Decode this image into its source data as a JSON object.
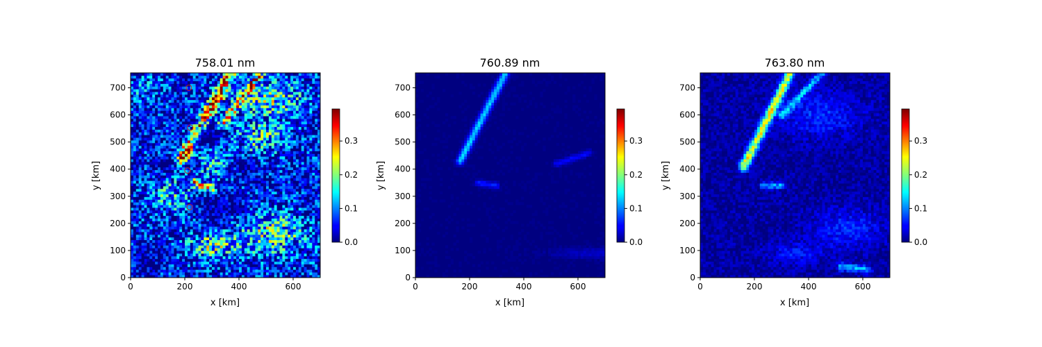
{
  "chart_data": [
    {
      "type": "heatmap",
      "title": "758.01 nm",
      "xlabel": "x [km]",
      "ylabel": "y [km]",
      "xlim": [
        0,
        700
      ],
      "ylim": [
        0,
        755
      ],
      "xticks": [
        "0",
        "200",
        "400",
        "600"
      ],
      "yticks": [
        "0",
        "100",
        "200",
        "300",
        "400",
        "500",
        "600",
        "700"
      ],
      "colormap": "jet",
      "colorbar": {
        "range": [
          0,
          0.395
        ],
        "ticks": [
          "0.0",
          "0.1",
          "0.2",
          "0.3"
        ]
      },
      "background_level": 0.05,
      "noise_level": 0.16,
      "blobs": [
        {
          "x": 40,
          "y": 700,
          "rx": 60,
          "ry": 40,
          "v": 0.05
        },
        {
          "x": 520,
          "y": 660,
          "rx": 120,
          "ry": 60,
          "v": 0.12
        },
        {
          "x": 480,
          "y": 520,
          "rx": 90,
          "ry": 60,
          "v": 0.1
        },
        {
          "x": 520,
          "y": 160,
          "rx": 120,
          "ry": 70,
          "v": 0.13
        },
        {
          "x": 300,
          "y": 120,
          "rx": 80,
          "ry": 40,
          "v": 0.12
        },
        {
          "x": 150,
          "y": 300,
          "rx": 70,
          "ry": 60,
          "v": 0.09
        },
        {
          "x": 300,
          "y": 420,
          "rx": 60,
          "ry": 50,
          "v": 0.08
        }
      ],
      "ridges": [
        {
          "x0": 190,
          "y0": 440,
          "x1": 370,
          "y1": 755,
          "w": 14,
          "v": 0.3
        },
        {
          "x0": 330,
          "y0": 560,
          "x1": 480,
          "y1": 755,
          "w": 10,
          "v": 0.22
        },
        {
          "x0": 230,
          "y0": 350,
          "x1": 300,
          "y1": 330,
          "w": 10,
          "v": 0.2
        }
      ],
      "holes": [
        {
          "x": 20,
          "y": 560,
          "rx": 20,
          "ry": 40
        },
        {
          "x": 60,
          "y": 60,
          "rx": 90,
          "ry": 60
        },
        {
          "x": 330,
          "y": 260,
          "rx": 110,
          "ry": 70
        },
        {
          "x": 280,
          "y": 520,
          "rx": 80,
          "ry": 60
        },
        {
          "x": 430,
          "y": 410,
          "rx": 70,
          "ry": 50
        },
        {
          "x": 120,
          "y": 420,
          "rx": 60,
          "ry": 40
        }
      ],
      "markers": [
        {
          "x": 215,
          "y": 700
        },
        {
          "x": 220,
          "y": 553
        },
        {
          "x": 210,
          "y": 395
        },
        {
          "x": 218,
          "y": 260
        }
      ]
    },
    {
      "type": "heatmap",
      "title": "760.89 nm",
      "xlabel": "x [km]",
      "ylabel": "y [km]",
      "xlim": [
        0,
        700
      ],
      "ylim": [
        0,
        755
      ],
      "xticks": [
        "0",
        "200",
        "400",
        "600"
      ],
      "yticks": [
        "0",
        "100",
        "200",
        "300",
        "400",
        "500",
        "600",
        "700"
      ],
      "colormap": "jet",
      "colorbar": {
        "range": [
          0,
          0.395
        ],
        "ticks": [
          "0.0",
          "0.1",
          "0.2",
          "0.3"
        ]
      },
      "background_level": 0.0,
      "noise_level": 0.015,
      "blobs": [
        {
          "x": 700,
          "y": 90,
          "rx": 200,
          "ry": 20,
          "v": 0.03
        }
      ],
      "ridges": [
        {
          "x0": 165,
          "y0": 430,
          "x1": 330,
          "y1": 750,
          "w": 10,
          "v": 0.13
        },
        {
          "x0": 230,
          "y0": 350,
          "x1": 300,
          "y1": 340,
          "w": 8,
          "v": 0.06
        },
        {
          "x0": 520,
          "y0": 420,
          "x1": 640,
          "y1": 460,
          "w": 8,
          "v": 0.05
        }
      ],
      "holes": [],
      "markers": []
    },
    {
      "type": "heatmap",
      "title": "763.80 nm",
      "xlabel": "x [km]",
      "ylabel": "y [km]",
      "xlim": [
        0,
        700
      ],
      "ylim": [
        0,
        755
      ],
      "xticks": [
        "0",
        "200",
        "400",
        "600"
      ],
      "yticks": [
        "0",
        "100",
        "200",
        "300",
        "400",
        "500",
        "600",
        "700"
      ],
      "colormap": "jet",
      "colorbar": {
        "range": [
          0,
          0.395
        ],
        "ticks": [
          "0.0",
          "0.1",
          "0.2",
          "0.3"
        ]
      },
      "background_level": 0.012,
      "noise_level": 0.05,
      "blobs": [
        {
          "x": 440,
          "y": 600,
          "rx": 150,
          "ry": 80,
          "v": 0.05
        },
        {
          "x": 540,
          "y": 180,
          "rx": 130,
          "ry": 70,
          "v": 0.05
        },
        {
          "x": 350,
          "y": 90,
          "rx": 100,
          "ry": 40,
          "v": 0.04
        }
      ],
      "ridges": [
        {
          "x0": 160,
          "y0": 410,
          "x1": 330,
          "y1": 750,
          "w": 12,
          "v": 0.22
        },
        {
          "x0": 300,
          "y0": 600,
          "x1": 450,
          "y1": 755,
          "w": 10,
          "v": 0.1
        },
        {
          "x0": 230,
          "y0": 340,
          "x1": 300,
          "y1": 340,
          "w": 8,
          "v": 0.1
        },
        {
          "x0": 520,
          "y0": 40,
          "x1": 620,
          "y1": 30,
          "w": 10,
          "v": 0.1
        }
      ],
      "holes": [],
      "markers": []
    }
  ]
}
